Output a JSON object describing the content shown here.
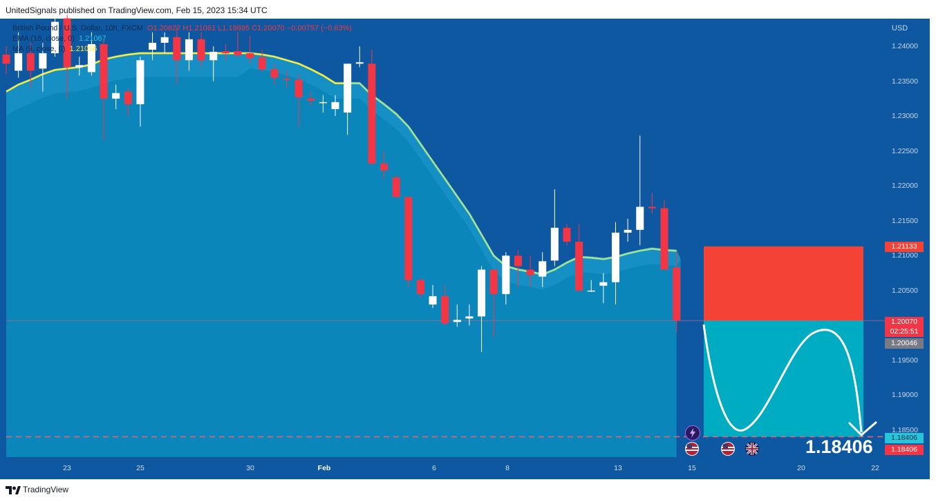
{
  "header": {
    "publisher_text": "UnitedSignals published on TradingView.com, Feb 15, 2023 15:34 UTC"
  },
  "legend": {
    "symbol": "British Pound / U.S. Dollar, 10h, FXCM",
    "ohlc": "O1.20827  H1.21061  L1.19895  C1.20070  −0.00757 (−0.63%)",
    "ema_label": "EMA (16, close, 0)",
    "ema_value": "1.21067",
    "ma_label": "MA (9, close, 0)",
    "ma_value": "1.21056"
  },
  "axis": {
    "currency": "USD",
    "y_ticks": [
      "1.24000",
      "1.23500",
      "1.23000",
      "1.22500",
      "1.22000",
      "1.21500",
      "1.21000",
      "1.20500",
      "1.20000",
      "1.19500",
      "1.19000",
      "1.18500"
    ],
    "x_ticks": [
      "23",
      "25",
      "30",
      "Feb",
      "6",
      "8",
      "13",
      "15",
      "20",
      "22"
    ]
  },
  "price_tags": {
    "stop": "1.21133",
    "last": "1.20070",
    "countdown": "02:25:51",
    "bid": "1.20046",
    "target_cyan": "1.18406",
    "target_red": "1.18406"
  },
  "target_label": "1.18406",
  "footer": {
    "brand": "TradingView"
  },
  "colors": {
    "up": "#ffffff",
    "down": "#f23645",
    "background": "#0d58a1",
    "area": "#0b8abf",
    "stop_box": "#f44336",
    "target_box": "#00acc1",
    "ema": "#ffeb3b",
    "ma": "#9ee39a"
  },
  "chart_data": {
    "type": "candlestick",
    "title": "British Pound / U.S. Dollar, 10h, FXCM",
    "y_axis": {
      "label": "USD",
      "range": [
        1.1795,
        1.2445
      ]
    },
    "candles": [
      {
        "o": 1.2388,
        "h": 1.24,
        "l": 1.236,
        "c": 1.2375
      },
      {
        "o": 1.2365,
        "h": 1.242,
        "l": 1.2355,
        "c": 1.239
      },
      {
        "o": 1.239,
        "h": 1.2405,
        "l": 1.234,
        "c": 1.2365
      },
      {
        "o": 1.2368,
        "h": 1.2405,
        "l": 1.2335,
        "c": 1.239
      },
      {
        "o": 1.239,
        "h": 1.244,
        "l": 1.2385,
        "c": 1.2435
      },
      {
        "o": 1.244,
        "h": 1.2445,
        "l": 1.2325,
        "c": 1.237
      },
      {
        "o": 1.237,
        "h": 1.2385,
        "l": 1.2358,
        "c": 1.2373
      },
      {
        "o": 1.2363,
        "h": 1.242,
        "l": 1.2358,
        "c": 1.2403
      },
      {
        "o": 1.2403,
        "h": 1.2408,
        "l": 1.2265,
        "c": 1.2325
      },
      {
        "o": 1.2325,
        "h": 1.2345,
        "l": 1.231,
        "c": 1.2333
      },
      {
        "o": 1.2335,
        "h": 1.234,
        "l": 1.23,
        "c": 1.2317
      },
      {
        "o": 1.2317,
        "h": 1.2385,
        "l": 1.2285,
        "c": 1.238
      },
      {
        "o": 1.2395,
        "h": 1.242,
        "l": 1.238,
        "c": 1.2405
      },
      {
        "o": 1.2405,
        "h": 1.242,
        "l": 1.239,
        "c": 1.2413
      },
      {
        "o": 1.2413,
        "h": 1.2428,
        "l": 1.2345,
        "c": 1.238
      },
      {
        "o": 1.238,
        "h": 1.242,
        "l": 1.2365,
        "c": 1.241
      },
      {
        "o": 1.241,
        "h": 1.242,
        "l": 1.237,
        "c": 1.238
      },
      {
        "o": 1.238,
        "h": 1.24,
        "l": 1.235,
        "c": 1.2392
      },
      {
        "o": 1.2393,
        "h": 1.2403,
        "l": 1.238,
        "c": 1.239
      },
      {
        "o": 1.2393,
        "h": 1.242,
        "l": 1.2385,
        "c": 1.2387
      },
      {
        "o": 1.239,
        "h": 1.2415,
        "l": 1.2375,
        "c": 1.2383
      },
      {
        "o": 1.2384,
        "h": 1.2395,
        "l": 1.2363,
        "c": 1.2367
      },
      {
        "o": 1.2367,
        "h": 1.2375,
        "l": 1.2345,
        "c": 1.2355
      },
      {
        "o": 1.2353,
        "h": 1.2365,
        "l": 1.234,
        "c": 1.2352
      },
      {
        "o": 1.2352,
        "h": 1.236,
        "l": 1.2285,
        "c": 1.2327
      },
      {
        "o": 1.2325,
        "h": 1.2335,
        "l": 1.2315,
        "c": 1.2322
      },
      {
        "o": 1.232,
        "h": 1.233,
        "l": 1.2305,
        "c": 1.232
      },
      {
        "o": 1.231,
        "h": 1.233,
        "l": 1.23,
        "c": 1.232
      },
      {
        "o": 1.2305,
        "h": 1.2375,
        "l": 1.2273,
        "c": 1.2375
      },
      {
        "o": 1.2375,
        "h": 1.24,
        "l": 1.237,
        "c": 1.2377
      },
      {
        "o": 1.2375,
        "h": 1.2395,
        "l": 1.223,
        "c": 1.2232
      },
      {
        "o": 1.2232,
        "h": 1.225,
        "l": 1.221,
        "c": 1.2222
      },
      {
        "o": 1.2212,
        "h": 1.2215,
        "l": 1.2185,
        "c": 1.2184
      },
      {
        "o": 1.2184,
        "h": 1.218,
        "l": 1.2055,
        "c": 1.2065
      },
      {
        "o": 1.2065,
        "h": 1.2068,
        "l": 1.204,
        "c": 1.2045
      },
      {
        "o": 1.203,
        "h": 1.2058,
        "l": 1.2025,
        "c": 1.2042
      },
      {
        "o": 1.2042,
        "h": 1.2058,
        "l": 1.2,
        "c": 1.2003
      },
      {
        "o": 1.2005,
        "h": 1.203,
        "l": 1.1998,
        "c": 1.2008
      },
      {
        "o": 1.201,
        "h": 1.203,
        "l": 1.2,
        "c": 1.2013
      },
      {
        "o": 1.2013,
        "h": 1.2085,
        "l": 1.1962,
        "c": 1.208
      },
      {
        "o": 1.208,
        "h": 1.208,
        "l": 1.1983,
        "c": 1.2045
      },
      {
        "o": 1.2045,
        "h": 1.2105,
        "l": 1.203,
        "c": 1.21
      },
      {
        "o": 1.21,
        "h": 1.2108,
        "l": 1.2055,
        "c": 1.2085
      },
      {
        "o": 1.208,
        "h": 1.21,
        "l": 1.2055,
        "c": 1.2072
      },
      {
        "o": 1.207,
        "h": 1.2105,
        "l": 1.2055,
        "c": 1.2092
      },
      {
        "o": 1.2093,
        "h": 1.2195,
        "l": 1.2085,
        "c": 1.214
      },
      {
        "o": 1.214,
        "h": 1.2145,
        "l": 1.2115,
        "c": 1.212
      },
      {
        "o": 1.212,
        "h": 1.2145,
        "l": 1.2048,
        "c": 1.205
      },
      {
        "o": 1.205,
        "h": 1.2065,
        "l": 1.2048,
        "c": 1.205
      },
      {
        "o": 1.2057,
        "h": 1.2075,
        "l": 1.2032,
        "c": 1.2062
      },
      {
        "o": 1.2062,
        "h": 1.2148,
        "l": 1.203,
        "c": 1.2133
      },
      {
        "o": 1.2133,
        "h": 1.2153,
        "l": 1.212,
        "c": 1.2137
      },
      {
        "o": 1.2137,
        "h": 1.2272,
        "l": 1.2115,
        "c": 1.217
      },
      {
        "o": 1.217,
        "h": 1.219,
        "l": 1.216,
        "c": 1.2168
      },
      {
        "o": 1.2168,
        "h": 1.218,
        "l": 1.208,
        "c": 1.208
      },
      {
        "o": 1.2083,
        "h": 1.2106,
        "l": 1.199,
        "c": 1.2007
      }
    ],
    "ema": [
      1.2335,
      1.2345,
      1.2352,
      1.236,
      1.2366,
      1.2368,
      1.237,
      1.2374,
      1.2381,
      1.2385,
      1.2388,
      1.239,
      1.239,
      1.239,
      1.239,
      1.239,
      1.239,
      1.239,
      1.239,
      1.239,
      1.239,
      1.2388,
      1.2385,
      1.238,
      1.2375,
      1.2367,
      1.2358,
      1.2347,
      1.2347,
      1.2347,
      1.233,
      1.2317,
      1.2303,
      1.2285,
      1.226,
      1.2235,
      1.221,
      1.2185,
      1.216,
      1.213,
      1.21,
      1.2085,
      1.208,
      1.2077,
      1.2073,
      1.208,
      1.209,
      1.2098,
      1.2097,
      1.2095,
      1.2098,
      1.2103,
      1.2107,
      1.211,
      1.2108,
      1.2107
    ],
    "ma_cross": [
      1.2335,
      1.2345,
      1.2352,
      1.236,
      1.2366,
      1.2368,
      1.237,
      1.2374,
      1.2381,
      1.2385,
      1.2388,
      1.239,
      1.239,
      1.239,
      1.239,
      1.239,
      1.239,
      1.239,
      1.239,
      1.239,
      1.239,
      1.2388,
      1.2385,
      1.238,
      1.2375,
      1.2367,
      1.2358,
      1.2347,
      1.2347,
      1.2347,
      1.233,
      1.2317,
      1.2303,
      1.2285,
      1.226,
      1.2235,
      1.221,
      1.2185,
      1.216,
      1.213,
      1.21,
      1.2085,
      1.208,
      1.2077,
      1.2073,
      1.208,
      1.209,
      1.2098,
      1.2097,
      1.2095,
      1.2098,
      1.2103,
      1.2107,
      1.211,
      1.2108,
      1.2107
    ],
    "position": {
      "entry": 1.2007,
      "stop": 1.21133,
      "target": 1.18406
    },
    "last_price": 1.2007,
    "target_line": 1.18406
  }
}
